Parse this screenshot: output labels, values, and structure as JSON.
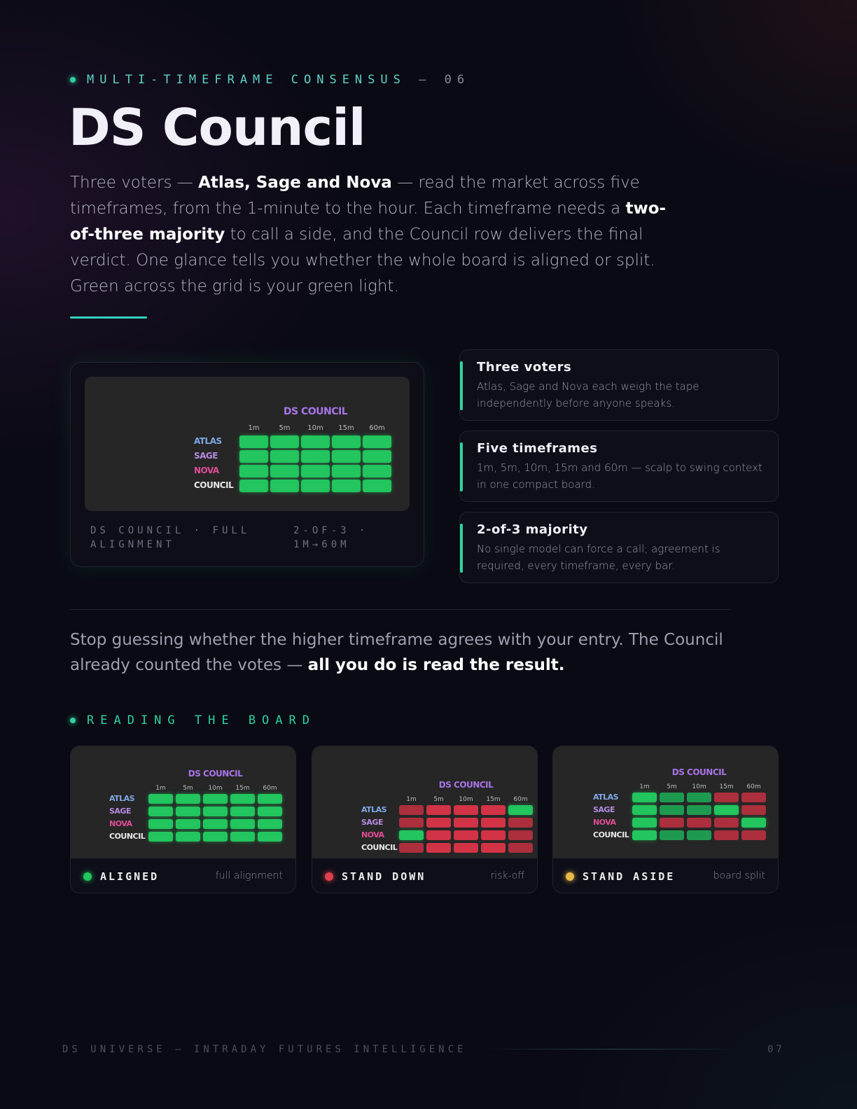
{
  "eyebrow": {
    "label": "MULTI-TIMEFRAME CONSENSUS",
    "separator": "—",
    "number": "06"
  },
  "title": "DS Council",
  "intro": {
    "p1": "Three voters — ",
    "b1": "Atlas, Sage and Nova",
    "p2": " — read the market across five timeframes, from the 1-minute to the hour. Each timeframe needs a ",
    "b2": "two-of-three majority",
    "p3": " to call a side, and the Council row delivers the final verdict. One glance tells you whether the whole board is aligned or split. Green across the grid is your green light."
  },
  "board": {
    "title": "DS COUNCIL",
    "timeframes": [
      "1m",
      "5m",
      "10m",
      "15m",
      "60m"
    ],
    "rows": [
      "ATLAS",
      "SAGE",
      "NOVA",
      "COUNCIL"
    ]
  },
  "hero": {
    "caption_left": "DS COUNCIL · FULL ALIGNMENT",
    "caption_right": "2-OF-3 · 1M→60M",
    "grid": [
      [
        "g",
        "g",
        "g",
        "g",
        "g"
      ],
      [
        "g",
        "g",
        "g",
        "g",
        "g"
      ],
      [
        "g",
        "g",
        "g",
        "g",
        "g"
      ],
      [
        "g",
        "g",
        "g",
        "g",
        "g"
      ]
    ]
  },
  "features": [
    {
      "title": "Three voters",
      "desc": "Atlas, Sage and Nova each weigh the tape independently before anyone speaks."
    },
    {
      "title": "Five timeframes",
      "desc": "1m, 5m, 10m, 15m and 60m — scalp to swing context in one compact board."
    },
    {
      "title": "2-of-3 majority",
      "desc": "No single model can force a call; agreement is required, every timeframe, every bar."
    }
  ],
  "punch": {
    "text": "Stop guessing whether the higher timeframe agrees with your entry. The Council already counted the votes — ",
    "bold": "all you do is read the result."
  },
  "section2": {
    "label": "READING THE BOARD"
  },
  "states": [
    {
      "label": "ALIGNED",
      "sub": "full alignment",
      "color": "#22c55e",
      "grid": [
        [
          "g",
          "g",
          "g",
          "g",
          "g"
        ],
        [
          "g",
          "g",
          "g",
          "g",
          "g"
        ],
        [
          "g",
          "g",
          "g",
          "g",
          "g"
        ],
        [
          "g",
          "g",
          "g",
          "g",
          "g"
        ]
      ]
    },
    {
      "label": "STAND DOWN",
      "sub": "risk-off",
      "color": "#e0404d",
      "grid": [
        [
          "rd",
          "r",
          "r",
          "r",
          "g"
        ],
        [
          "rd",
          "r",
          "r",
          "r",
          "rd"
        ],
        [
          "g",
          "r",
          "r",
          "r",
          "rd"
        ],
        [
          "rd",
          "r",
          "r",
          "r",
          "rd"
        ]
      ]
    },
    {
      "label": "STAND ASIDE",
      "sub": "board split",
      "color": "#e8b84a",
      "grid": [
        [
          "g",
          "gd",
          "gd",
          "rd",
          "rd"
        ],
        [
          "g",
          "gd",
          "gd",
          "g",
          "rd"
        ],
        [
          "g",
          "rd",
          "rd",
          "rd",
          "g"
        ],
        [
          "g",
          "gd",
          "gd",
          "rd",
          "rd"
        ]
      ]
    }
  ],
  "footer": {
    "left": "DS UNIVERSE — INTRADAY FUTURES INTELLIGENCE",
    "page": "07"
  }
}
